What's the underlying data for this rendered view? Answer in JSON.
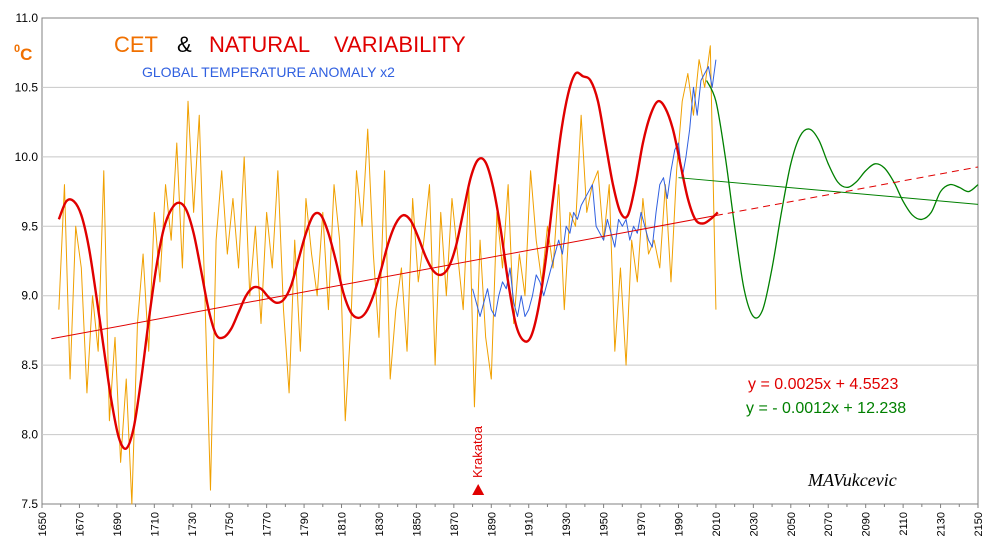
{
  "chart_data": {
    "type": "line",
    "unit_label": "0C",
    "title_parts": [
      "CET",
      "&",
      "NATURAL",
      "VARIABILITY"
    ],
    "subtitle": "GLOBAL TEMPERATURE ANOMALY x2",
    "ylim": [
      7.5,
      11.0
    ],
    "xlim": [
      1650,
      2150
    ],
    "y_ticks": [
      "11.0",
      "10.5",
      "10.0",
      "9.5",
      "9.0",
      "8.5",
      "8.0",
      "7.5"
    ],
    "x_ticks": [
      "1650",
      "1670",
      "1690",
      "1710",
      "1730",
      "1750",
      "1770",
      "1790",
      "1810",
      "1830",
      "1850",
      "1870",
      "1890",
      "1910",
      "1930",
      "1950",
      "1970",
      "1990",
      "2010",
      "2030",
      "2050",
      "2070",
      "2090",
      "2110",
      "2130",
      "2150"
    ],
    "grid": true,
    "colors": {
      "cet": "#f0a000",
      "natural": "#e00000",
      "global": "#3060e0",
      "trend_red": "#e00000",
      "trend_green": "#008000",
      "projection": "#008000",
      "cet_title": "#f07000",
      "nat_title": "#e00000",
      "subtitle": "#3060e0"
    },
    "series": [
      {
        "name": "CET",
        "x": [
          1659,
          1662,
          1665,
          1668,
          1671,
          1674,
          1677,
          1680,
          1683,
          1686,
          1689,
          1692,
          1695,
          1698,
          1701,
          1704,
          1707,
          1710,
          1713,
          1716,
          1719,
          1722,
          1725,
          1728,
          1731,
          1734,
          1737,
          1740,
          1743,
          1746,
          1749,
          1752,
          1755,
          1758,
          1761,
          1764,
          1767,
          1770,
          1773,
          1776,
          1779,
          1782,
          1785,
          1788,
          1791,
          1794,
          1797,
          1800,
          1803,
          1806,
          1809,
          1812,
          1815,
          1818,
          1821,
          1824,
          1827,
          1830,
          1833,
          1836,
          1839,
          1842,
          1845,
          1848,
          1851,
          1854,
          1857,
          1860,
          1863,
          1866,
          1869,
          1872,
          1875,
          1878,
          1881,
          1884,
          1887,
          1890,
          1893,
          1896,
          1899,
          1902,
          1905,
          1908,
          1911,
          1914,
          1917,
          1920,
          1923,
          1926,
          1929,
          1932,
          1935,
          1938,
          1941,
          1944,
          1947,
          1950,
          1953,
          1956,
          1959,
          1962,
          1965,
          1968,
          1971,
          1974,
          1977,
          1980,
          1983,
          1986,
          1989,
          1992,
          1995,
          1998,
          2001,
          2004,
          2007,
          2010
        ],
        "values": [
          8.9,
          9.8,
          8.4,
          9.5,
          9.2,
          8.3,
          9.0,
          8.6,
          9.9,
          8.1,
          8.7,
          7.8,
          8.4,
          7.5,
          8.8,
          9.3,
          8.6,
          9.6,
          9.1,
          9.8,
          9.4,
          10.1,
          9.2,
          10.4,
          9.6,
          10.3,
          9.0,
          7.6,
          9.4,
          9.9,
          9.3,
          9.7,
          9.2,
          10.0,
          9.0,
          9.5,
          8.8,
          9.6,
          9.2,
          9.9,
          8.9,
          8.3,
          9.4,
          8.6,
          9.7,
          9.3,
          9.0,
          9.6,
          8.9,
          9.8,
          9.4,
          8.1,
          8.8,
          9.9,
          9.5,
          10.2,
          9.3,
          8.7,
          9.9,
          8.4,
          8.9,
          9.2,
          8.6,
          9.7,
          9.1,
          9.4,
          9.8,
          8.5,
          9.6,
          9.0,
          9.7,
          9.3,
          8.9,
          9.8,
          8.2,
          9.4,
          8.7,
          8.4,
          9.6,
          9.2,
          9.8,
          8.8,
          9.3,
          9.0,
          9.9,
          9.4,
          9.1,
          9.5,
          9.2,
          9.8,
          8.9,
          9.6,
          9.5,
          10.3,
          9.6,
          9.8,
          9.9,
          9.4,
          9.8,
          8.6,
          9.2,
          8.5,
          9.4,
          9.1,
          9.7,
          9.3,
          9.4,
          9.2,
          9.8,
          9.1,
          9.9,
          10.4,
          10.6,
          10.3,
          10.7,
          10.5,
          10.8,
          8.9
        ]
      },
      {
        "name": "NATURAL VARIABILITY",
        "x": [
          1659,
          1663,
          1667,
          1671,
          1675,
          1679,
          1683,
          1687,
          1691,
          1695,
          1699,
          1703,
          1707,
          1711,
          1715,
          1719,
          1723,
          1727,
          1731,
          1735,
          1739,
          1743,
          1747,
          1751,
          1755,
          1759,
          1763,
          1767,
          1771,
          1775,
          1779,
          1783,
          1787,
          1791,
          1795,
          1799,
          1803,
          1807,
          1811,
          1815,
          1819,
          1823,
          1827,
          1831,
          1835,
          1839,
          1843,
          1847,
          1851,
          1855,
          1859,
          1863,
          1867,
          1871,
          1875,
          1879,
          1883,
          1887,
          1891,
          1895,
          1899,
          1903,
          1907,
          1911,
          1915,
          1919,
          1923,
          1927,
          1931,
          1935,
          1939,
          1943,
          1947,
          1951,
          1955,
          1959,
          1963,
          1967,
          1971,
          1975,
          1979,
          1983,
          1987,
          1991,
          1995,
          1999,
          2003,
          2007,
          2011
        ],
        "values": [
          9.55,
          9.68,
          9.68,
          9.58,
          9.35,
          9.0,
          8.62,
          8.25,
          7.98,
          7.9,
          8.05,
          8.4,
          8.82,
          9.2,
          9.48,
          9.62,
          9.67,
          9.62,
          9.45,
          9.18,
          8.9,
          8.72,
          8.7,
          8.76,
          8.88,
          9.0,
          9.06,
          9.05,
          8.99,
          8.95,
          8.97,
          9.07,
          9.26,
          9.45,
          9.58,
          9.58,
          9.45,
          9.25,
          9.02,
          8.88,
          8.84,
          8.88,
          9.0,
          9.18,
          9.38,
          9.52,
          9.58,
          9.54,
          9.42,
          9.28,
          9.18,
          9.15,
          9.2,
          9.35,
          9.6,
          9.85,
          9.98,
          9.96,
          9.78,
          9.48,
          9.1,
          8.8,
          8.68,
          8.7,
          8.9,
          9.25,
          9.7,
          10.15,
          10.45,
          10.6,
          10.58,
          10.55,
          10.4,
          10.1,
          9.8,
          9.6,
          9.58,
          9.8,
          10.1,
          10.3,
          10.4,
          10.35,
          10.2,
          9.95,
          9.7,
          9.55,
          9.52,
          9.55,
          9.6
        ]
      },
      {
        "name": "GLOBAL TEMPERATURE ANOMALY x2",
        "x": [
          1880,
          1882,
          1884,
          1886,
          1888,
          1890,
          1892,
          1894,
          1896,
          1898,
          1900,
          1902,
          1904,
          1906,
          1908,
          1910,
          1912,
          1914,
          1916,
          1918,
          1920,
          1922,
          1924,
          1926,
          1928,
          1930,
          1932,
          1934,
          1936,
          1938,
          1940,
          1942,
          1944,
          1946,
          1948,
          1950,
          1952,
          1954,
          1956,
          1958,
          1960,
          1962,
          1964,
          1966,
          1968,
          1970,
          1972,
          1974,
          1976,
          1978,
          1980,
          1982,
          1984,
          1986,
          1988,
          1990,
          1992,
          1994,
          1996,
          1998,
          2000,
          2002,
          2004,
          2006,
          2008,
          2010
        ],
        "values": [
          9.05,
          8.95,
          8.85,
          8.95,
          9.05,
          8.9,
          8.85,
          9.0,
          9.1,
          9.05,
          9.2,
          8.95,
          8.85,
          9.0,
          8.85,
          8.9,
          9.0,
          9.15,
          9.1,
          9.0,
          9.1,
          9.2,
          9.3,
          9.4,
          9.3,
          9.5,
          9.45,
          9.6,
          9.55,
          9.65,
          9.7,
          9.75,
          9.8,
          9.5,
          9.45,
          9.4,
          9.55,
          9.45,
          9.35,
          9.55,
          9.5,
          9.55,
          9.4,
          9.5,
          9.45,
          9.6,
          9.5,
          9.4,
          9.35,
          9.6,
          9.8,
          9.85,
          9.7,
          9.9,
          10.05,
          10.1,
          9.85,
          10.0,
          10.2,
          10.5,
          10.3,
          10.55,
          10.6,
          10.65,
          10.5,
          10.7
        ]
      },
      {
        "name": "PROJECTION",
        "x": [
          2005,
          2010,
          2015,
          2020,
          2025,
          2030,
          2035,
          2040,
          2045,
          2050,
          2055,
          2060,
          2065,
          2070,
          2075,
          2080,
          2085,
          2090,
          2095,
          2100,
          2105,
          2110,
          2115,
          2120,
          2125,
          2130,
          2135,
          2140,
          2145,
          2150
        ],
        "values": [
          10.55,
          10.4,
          10.0,
          9.5,
          9.05,
          8.85,
          8.9,
          9.2,
          9.6,
          9.95,
          10.15,
          10.2,
          10.12,
          9.95,
          9.82,
          9.78,
          9.82,
          9.9,
          9.95,
          9.92,
          9.82,
          9.68,
          9.58,
          9.55,
          9.6,
          9.75,
          9.8,
          9.78,
          9.75,
          9.8
        ]
      }
    ],
    "trendlines": [
      {
        "equation": "y = 0.0025x + 4.5523",
        "slope": 0.0025,
        "intercept": 4.5523,
        "x_solid": [
          1655,
          2010
        ],
        "x_dashed": [
          2010,
          2150
        ]
      },
      {
        "equation": "y = - 0.0012x + 12.238",
        "slope": -0.0012,
        "intercept": 12.238,
        "x_solid": [
          1990,
          2150
        ]
      }
    ],
    "annotations": [
      {
        "text": "Krakatoa",
        "x": 1883
      }
    ],
    "signature": "MAVukcevic"
  }
}
